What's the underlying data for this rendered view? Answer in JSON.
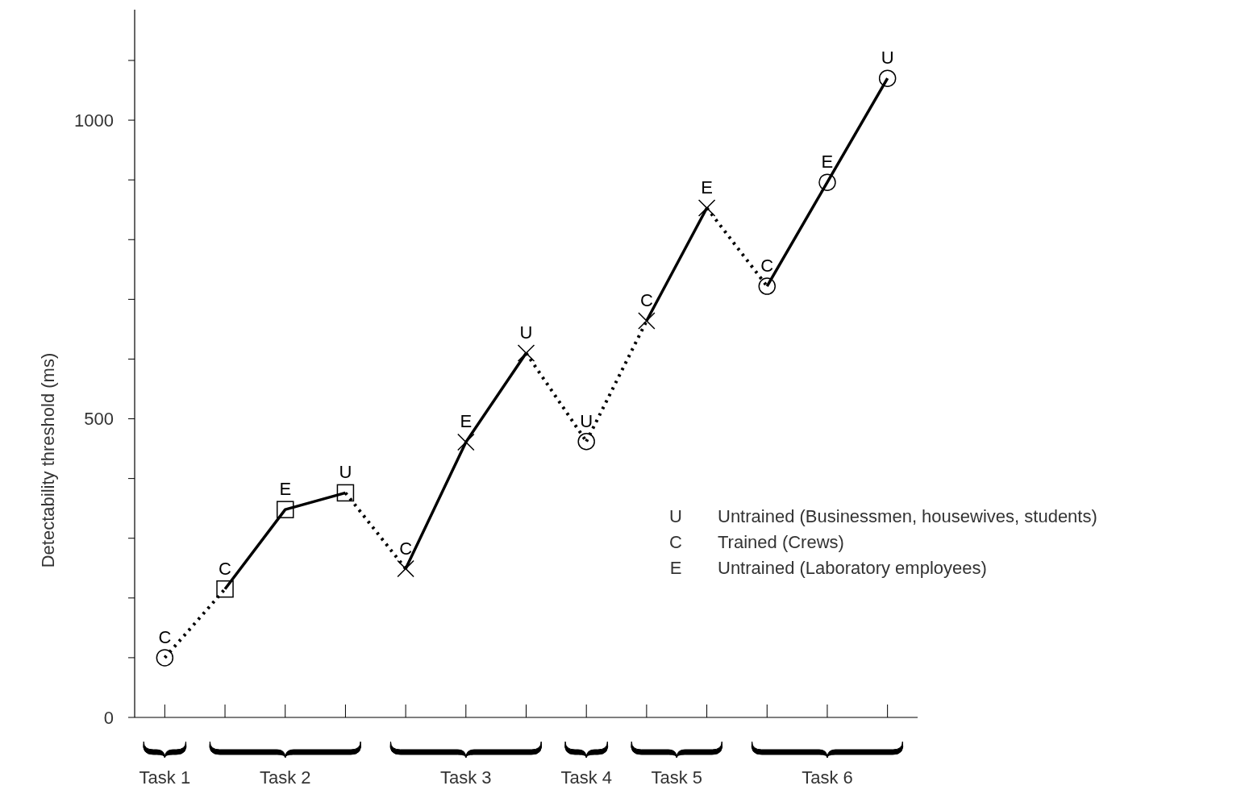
{
  "chart_data": {
    "type": "line",
    "ylabel": "Detectability threshold (ms)",
    "categories": [
      null,
      null,
      null,
      null,
      null,
      null,
      null,
      null,
      null,
      null,
      null,
      null,
      null
    ],
    "ylim": [
      0,
      1185
    ],
    "yticks": [
      0,
      {
        "value": 100,
        "label": null
      },
      {
        "value": 200,
        "label": null
      },
      {
        "value": 300,
        "label": null
      },
      {
        "value": 400,
        "label": null
      },
      500,
      {
        "value": 600,
        "label": null
      },
      {
        "value": 700,
        "label": null
      },
      {
        "value": 800,
        "label": null
      },
      {
        "value": 900,
        "label": null
      },
      1000,
      {
        "value": 1100,
        "label": null
      }
    ],
    "tick_labels": "y",
    "grid": false,
    "series": [
      {
        "color": "#000000",
        "values": [
          100,
          null,
          null,
          null,
          null,
          null,
          null,
          null,
          null,
          null,
          null,
          null,
          null
        ],
        "marker": "circle",
        "line_style": "solid",
        "value_labels": [
          "C",
          null,
          null,
          null,
          null,
          null,
          null,
          null,
          null,
          null,
          null,
          null,
          null
        ]
      },
      {
        "color": "#000000",
        "values": [
          null,
          215,
          348,
          376,
          null,
          null,
          null,
          null,
          null,
          null,
          null,
          null,
          null
        ],
        "marker": "square",
        "line_style": "solid",
        "value_labels": [
          null,
          "C",
          "E",
          "U",
          null,
          null,
          null,
          null,
          null,
          null,
          null,
          null,
          null
        ]
      },
      {
        "color": "#000000",
        "values": [
          null,
          null,
          null,
          null,
          249,
          461,
          610,
          null,
          null,
          null,
          null,
          null,
          null
        ],
        "marker": "cross",
        "line_style": "solid",
        "value_labels": [
          null,
          null,
          null,
          null,
          "C",
          "E",
          "U",
          null,
          null,
          null,
          null,
          null,
          null
        ]
      },
      {
        "color": "#000000",
        "values": [
          null,
          null,
          null,
          null,
          null,
          null,
          null,
          462,
          null,
          null,
          null,
          null,
          null
        ],
        "marker": "circle",
        "line_style": "solid",
        "value_labels": [
          null,
          null,
          null,
          null,
          null,
          null,
          null,
          "U",
          null,
          null,
          null,
          null,
          null
        ]
      },
      {
        "color": "#000000",
        "values": [
          null,
          null,
          null,
          null,
          null,
          null,
          null,
          null,
          664,
          853,
          null,
          null,
          null
        ],
        "marker": "cross",
        "line_style": "solid",
        "value_labels": [
          null,
          null,
          null,
          null,
          null,
          null,
          null,
          null,
          "C",
          "E",
          null,
          null,
          null
        ]
      },
      {
        "color": "#000000",
        "values": [
          null,
          null,
          null,
          null,
          null,
          null,
          null,
          null,
          null,
          null,
          722,
          896,
          1070
        ],
        "marker": "circle",
        "line_style": "solid",
        "value_labels": [
          null,
          null,
          null,
          null,
          null,
          null,
          null,
          null,
          null,
          null,
          "C",
          "E",
          "U"
        ]
      },
      {
        "color": "#000000",
        "values": [
          100,
          215,
          null,
          null,
          null,
          null,
          null,
          null,
          null,
          null,
          null,
          null,
          null
        ],
        "marker": "none",
        "line_style": "dotted"
      },
      {
        "color": "#000000",
        "values": [
          null,
          null,
          null,
          376,
          249,
          null,
          null,
          null,
          null,
          null,
          null,
          null,
          null
        ],
        "marker": "none",
        "line_style": "dotted"
      },
      {
        "color": "#000000",
        "values": [
          null,
          null,
          null,
          null,
          null,
          null,
          610,
          462,
          null,
          null,
          null,
          null,
          null
        ],
        "marker": "none",
        "line_style": "dotted"
      },
      {
        "color": "#000000",
        "values": [
          null,
          null,
          null,
          null,
          null,
          null,
          null,
          462,
          664,
          null,
          null,
          null,
          null
        ],
        "marker": "none",
        "line_style": "dotted"
      },
      {
        "color": "#000000",
        "values": [
          null,
          null,
          null,
          null,
          null,
          null,
          null,
          null,
          null,
          853,
          722,
          null,
          null
        ],
        "marker": "none",
        "line_style": "dotted"
      }
    ],
    "annotations": [
      "U",
      "Untrained (Businessmen, housewives, students)",
      "C",
      "Trained (Crews)",
      "E",
      "Untrained (Laboratory employees)",
      "Task 1",
      "Task 2",
      "Task 3",
      "Task 4",
      "Task 5",
      "Task 6"
    ]
  }
}
